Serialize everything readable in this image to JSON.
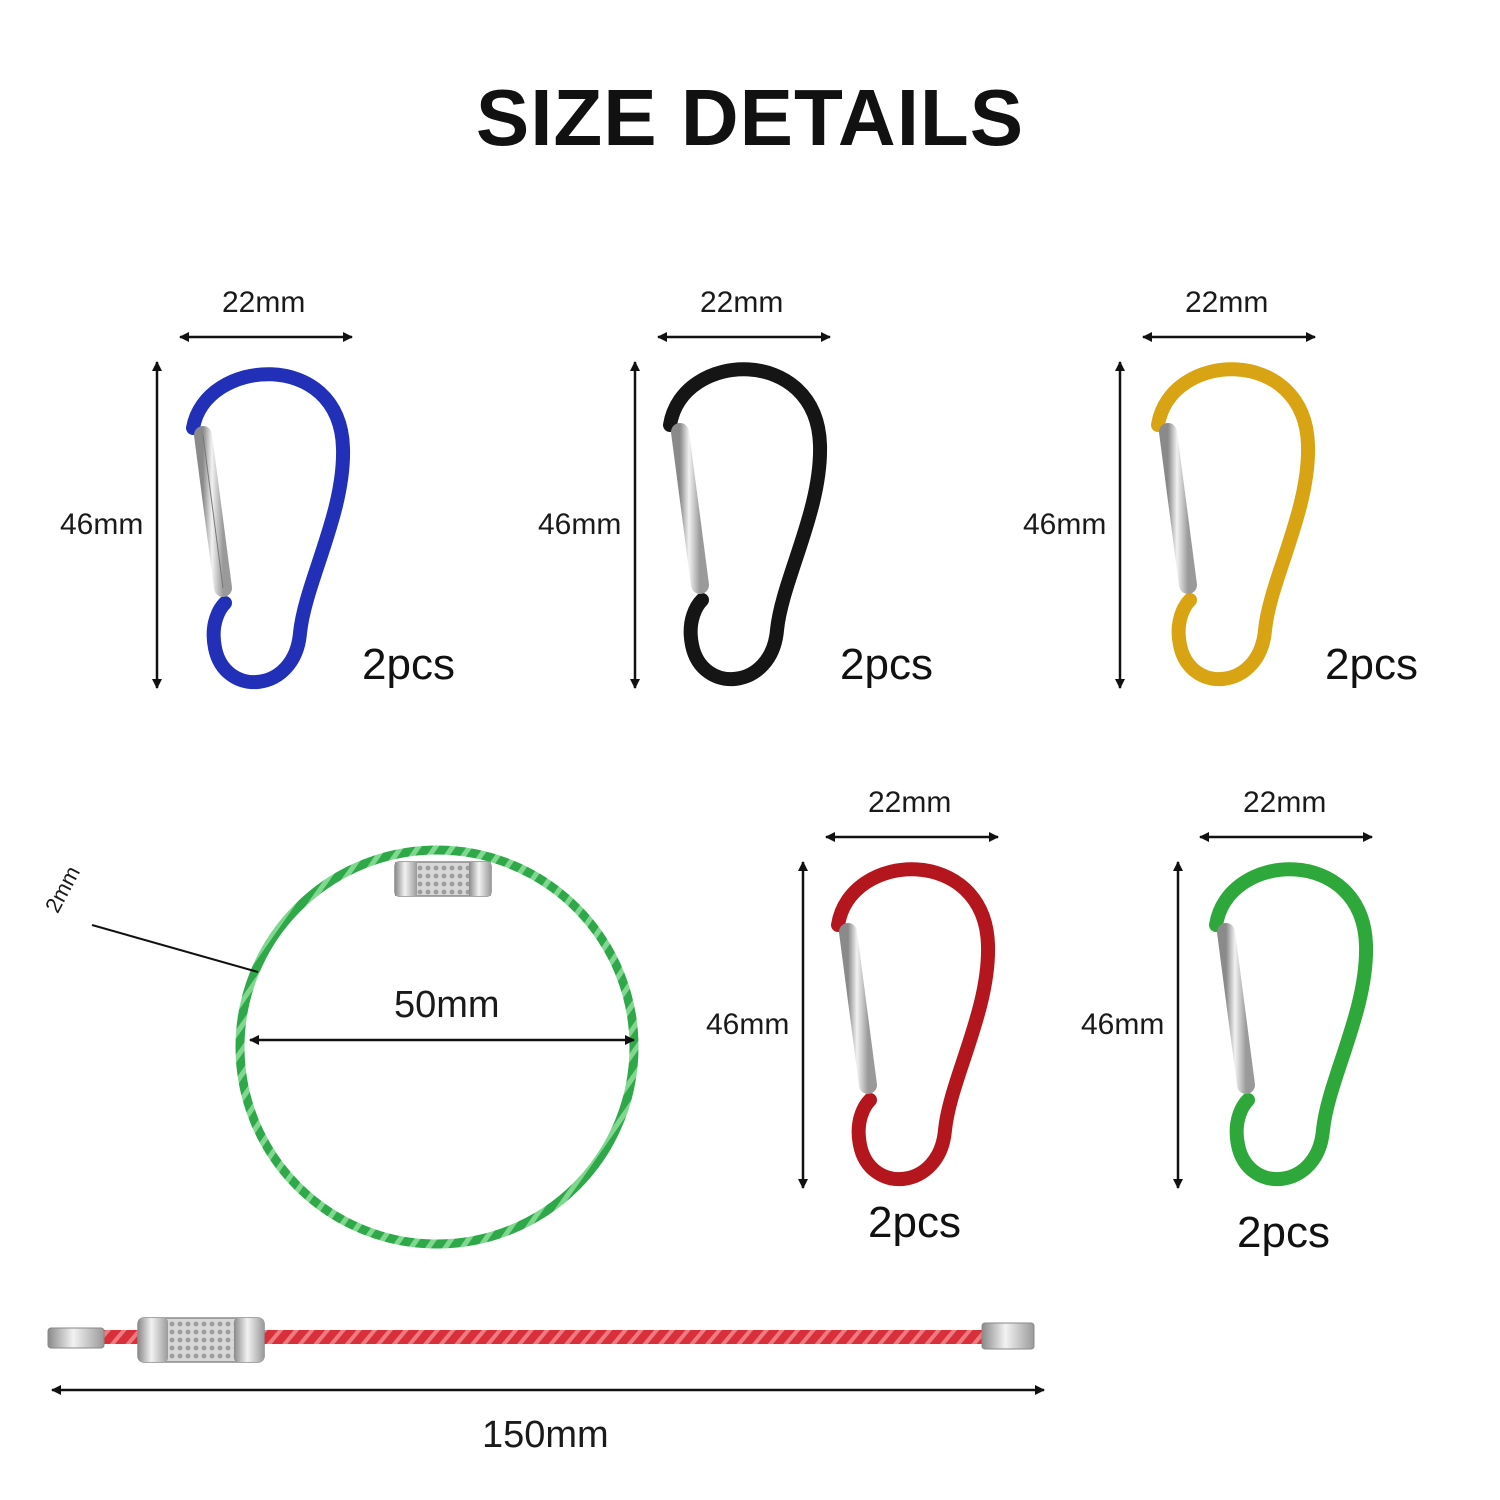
{
  "title": "SIZE DETAILS",
  "carabiners": [
    {
      "name": "blue-carabiner",
      "color": "#2230b8",
      "width_label": "22mm",
      "height_label": "46mm",
      "qty_label": "2pcs"
    },
    {
      "name": "black-carabiner",
      "color": "#151515",
      "width_label": "22mm",
      "height_label": "46mm",
      "qty_label": "2pcs"
    },
    {
      "name": "gold-carabiner",
      "color": "#d9a413",
      "width_label": "22mm",
      "height_label": "46mm",
      "qty_label": "2pcs"
    },
    {
      "name": "red-carabiner",
      "color": "#b3161d",
      "width_label": "22mm",
      "height_label": "46mm",
      "qty_label": "2pcs"
    },
    {
      "name": "green-carabiner",
      "color": "#2ea83a",
      "width_label": "22mm",
      "height_label": "46mm",
      "qty_label": "2pcs"
    }
  ],
  "ring": {
    "color": "#2fa84a",
    "diameter_label": "50mm",
    "wire_label": "2mm"
  },
  "cable": {
    "color": "#d8303a",
    "length_label": "150mm"
  }
}
